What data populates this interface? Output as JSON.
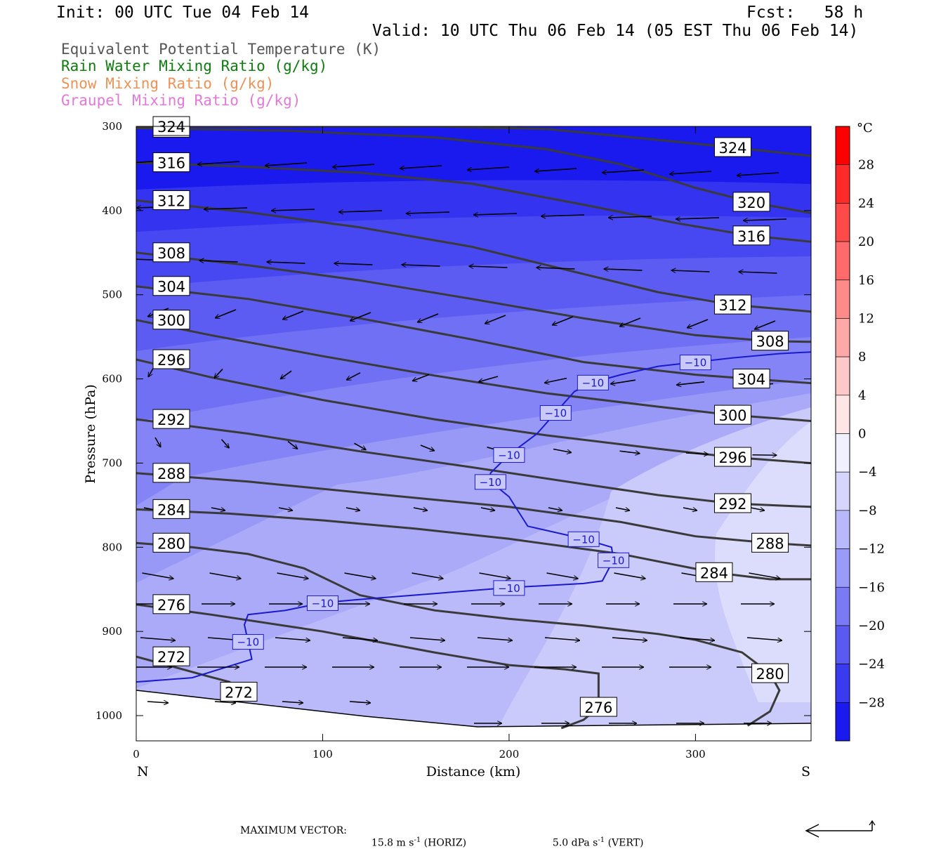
{
  "header": {
    "init": "Init: 00 UTC Tue 04 Feb 14",
    "fcst": "Fcst:   58 h",
    "valid": "Valid: 10 UTC Thu 06 Feb 14 (05 EST Thu 06 Feb 14)"
  },
  "legend": [
    {
      "text": "Equivalent Potential Temperature (K)",
      "color": "#555555"
    },
    {
      "text": "Rain Water Mixing Ratio (g/kg)",
      "color": "#117a11"
    },
    {
      "text": "Snow Mixing Ratio (g/kg)",
      "color": "#e8935a"
    },
    {
      "text": "Graupel Mixing Ratio (g/kg)",
      "color": "#e07ad8"
    }
  ],
  "colorbar": {
    "unit": "°C",
    "ticks": [
      "28",
      "24",
      "20",
      "16",
      "12",
      "8",
      "4",
      "0",
      "−4",
      "−8",
      "−12",
      "−16",
      "−20",
      "−24",
      "−28"
    ]
  },
  "footer": {
    "label": "MAXIMUM VECTOR:",
    "horiz": "15.8 m s",
    "horiz_unit": "(HORIZ)",
    "vert": "5.0 dPa s",
    "vert_unit": "(VERT)",
    "exp": "-1"
  },
  "chart_data": {
    "type": "cross-section",
    "xlabel": "Distance (km)",
    "ylabel": "Pressure (hPa)",
    "x_ticks": [
      0,
      100,
      200,
      300
    ],
    "y_ticks": [
      300,
      400,
      500,
      600,
      700,
      800,
      900,
      1000
    ],
    "xlim": [
      0,
      362
    ],
    "ylim": [
      1030,
      300
    ],
    "y_scale": "linear",
    "left_end": "N",
    "right_end": "S",
    "shaded_field": "temperature (°C)",
    "temperature_contour_label": "−10",
    "theta_e_contours": [
      {
        "value": 272,
        "points": [
          [
            0,
            930
          ],
          [
            20,
            942
          ],
          [
            38,
            953
          ],
          [
            50,
            960
          ],
          [
            55,
            972
          ],
          [
            57,
            983
          ]
        ]
      },
      {
        "value": 276,
        "points": [
          [
            0,
            868
          ],
          [
            40,
            880
          ],
          [
            100,
            900
          ],
          [
            160,
            925
          ],
          [
            200,
            940
          ],
          [
            230,
            945
          ],
          [
            248,
            950
          ],
          [
            248,
            990
          ],
          [
            240,
            1005
          ],
          [
            228,
            1015
          ]
        ]
      },
      {
        "value": 280,
        "points": [
          [
            0,
            795
          ],
          [
            30,
            800
          ],
          [
            60,
            808
          ],
          [
            90,
            825
          ],
          [
            120,
            857
          ],
          [
            160,
            875
          ],
          [
            200,
            885
          ],
          [
            240,
            893
          ],
          [
            280,
            903
          ],
          [
            300,
            910
          ],
          [
            325,
            925
          ],
          [
            340,
            950
          ],
          [
            345,
            970
          ],
          [
            340,
            995
          ],
          [
            328,
            1012
          ]
        ]
      },
      {
        "value": 284,
        "points": [
          [
            0,
            755
          ],
          [
            50,
            760
          ],
          [
            100,
            768
          ],
          [
            150,
            778
          ],
          [
            200,
            790
          ],
          [
            260,
            808
          ],
          [
            310,
            830
          ],
          [
            340,
            838
          ],
          [
            362,
            838
          ]
        ]
      },
      {
        "value": 288,
        "points": [
          [
            0,
            712
          ],
          [
            60,
            722
          ],
          [
            120,
            735
          ],
          [
            200,
            752
          ],
          [
            260,
            770
          ],
          [
            300,
            787
          ],
          [
            340,
            795
          ],
          [
            362,
            798
          ]
        ]
      },
      {
        "value": 292,
        "points": [
          [
            0,
            648
          ],
          [
            60,
            665
          ],
          [
            120,
            686
          ],
          [
            180,
            705
          ],
          [
            240,
            725
          ],
          [
            280,
            738
          ],
          [
            320,
            748
          ],
          [
            362,
            752
          ]
        ]
      },
      {
        "value": 296,
        "points": [
          [
            0,
            577
          ],
          [
            40,
            598
          ],
          [
            100,
            625
          ],
          [
            160,
            648
          ],
          [
            220,
            667
          ],
          [
            280,
            683
          ],
          [
            320,
            693
          ],
          [
            362,
            700
          ]
        ]
      },
      {
        "value": 300,
        "points": [
          [
            0,
            530
          ],
          [
            40,
            548
          ],
          [
            100,
            573
          ],
          [
            160,
            596
          ],
          [
            220,
            617
          ],
          [
            280,
            633
          ],
          [
            320,
            643
          ],
          [
            362,
            650
          ]
        ]
      },
      {
        "value": 304,
        "points": [
          [
            0,
            490
          ],
          [
            60,
            505
          ],
          [
            120,
            528
          ],
          [
            180,
            553
          ],
          [
            240,
            580
          ],
          [
            300,
            595
          ],
          [
            330,
            600
          ],
          [
            362,
            605
          ]
        ]
      },
      {
        "value": 308,
        "points": [
          [
            0,
            450
          ],
          [
            60,
            465
          ],
          [
            120,
            483
          ],
          [
            180,
            505
          ],
          [
            240,
            528
          ],
          [
            300,
            548
          ],
          [
            340,
            555
          ],
          [
            362,
            556
          ]
        ]
      },
      {
        "value": 312,
        "points": [
          [
            0,
            388
          ],
          [
            60,
            402
          ],
          [
            120,
            420
          ],
          [
            180,
            443
          ],
          [
            230,
            470
          ],
          [
            280,
            497
          ],
          [
            320,
            512
          ],
          [
            362,
            520
          ]
        ]
      },
      {
        "value": 316,
        "points": [
          [
            0,
            343
          ],
          [
            60,
            348
          ],
          [
            120,
            355
          ],
          [
            180,
            368
          ],
          [
            240,
            393
          ],
          [
            290,
            415
          ],
          [
            330,
            430
          ],
          [
            362,
            437
          ]
        ]
      },
      {
        "value": 320,
        "points": [
          [
            0,
            302
          ],
          [
            80,
            305
          ],
          [
            160,
            313
          ],
          [
            220,
            327
          ],
          [
            260,
            345
          ],
          [
            300,
            373
          ],
          [
            330,
            390
          ],
          [
            362,
            403
          ]
        ]
      },
      {
        "value": 324,
        "points": [
          [
            0,
            300
          ],
          [
            160,
            300
          ],
          [
            220,
            303
          ],
          [
            280,
            316
          ],
          [
            320,
            325
          ],
          [
            362,
            335
          ]
        ]
      }
    ],
    "minus10_contour": [
      [
        0,
        960
      ],
      [
        30,
        955
      ],
      [
        62,
        933
      ],
      [
        60,
        912
      ],
      [
        58,
        892
      ],
      [
        60,
        880
      ],
      [
        80,
        875
      ],
      [
        100,
        866
      ],
      [
        120,
        862
      ],
      [
        160,
        855
      ],
      [
        200,
        848
      ],
      [
        240,
        843
      ],
      [
        250,
        840
      ],
      [
        256,
        815
      ],
      [
        255,
        800
      ],
      [
        240,
        790
      ],
      [
        210,
        775
      ],
      [
        200,
        740
      ],
      [
        190,
        722
      ],
      [
        190,
        712
      ],
      [
        200,
        690
      ],
      [
        215,
        665
      ],
      [
        225,
        640
      ],
      [
        235,
        615
      ],
      [
        245,
        604
      ],
      [
        260,
        595
      ],
      [
        280,
        585
      ],
      [
        300,
        580
      ],
      [
        320,
        575
      ],
      [
        345,
        570
      ],
      [
        362,
        568
      ]
    ]
  }
}
